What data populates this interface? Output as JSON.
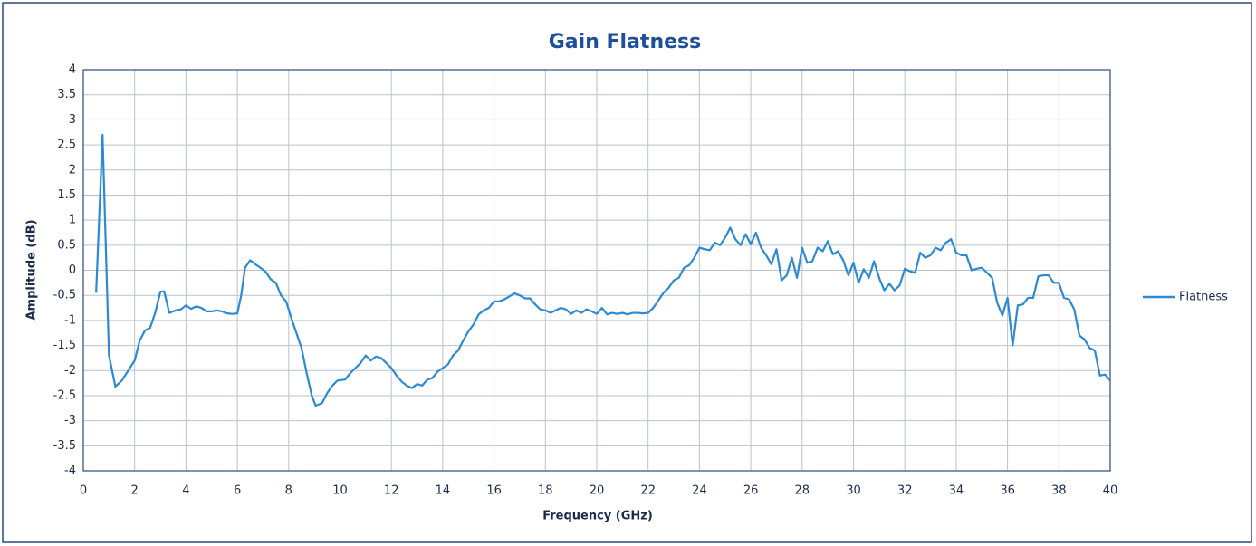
{
  "chart_data": {
    "type": "line",
    "title": "Gain Flatness",
    "xlabel": "Frequency (GHz)",
    "ylabel": "Amplitude (dB)",
    "x": [
      0.5,
      0.75,
      1.0,
      1.25,
      1.5,
      1.75,
      2.0,
      2.2,
      2.4,
      2.6,
      2.8,
      3.0,
      3.15,
      3.35,
      3.6,
      3.8,
      4.0,
      4.2,
      4.4,
      4.6,
      4.8,
      5.0,
      5.2,
      5.4,
      5.6,
      5.8,
      6.0,
      6.15,
      6.3,
      6.5,
      6.7,
      6.9,
      7.1,
      7.3,
      7.5,
      7.7,
      7.9,
      8.1,
      8.3,
      8.5,
      8.7,
      8.9,
      9.05,
      9.3,
      9.5,
      9.7,
      9.9,
      10.2,
      10.4,
      10.6,
      10.8,
      11.0,
      11.2,
      11.4,
      11.6,
      11.8,
      12.0,
      12.2,
      12.4,
      12.6,
      12.8,
      13.0,
      13.2,
      13.4,
      13.6,
      13.8,
      14.0,
      14.2,
      14.4,
      14.6,
      14.8,
      15.0,
      15.2,
      15.4,
      15.6,
      15.8,
      16.0,
      16.2,
      16.4,
      16.6,
      16.8,
      17.0,
      17.2,
      17.4,
      17.6,
      17.8,
      18.0,
      18.2,
      18.4,
      18.6,
      18.8,
      19.0,
      19.2,
      19.4,
      19.6,
      19.8,
      20.0,
      20.2,
      20.4,
      20.6,
      20.8,
      21.0,
      21.2,
      21.4,
      21.6,
      21.8,
      22.0,
      22.2,
      22.4,
      22.6,
      22.8,
      23.0,
      23.2,
      23.4,
      23.6,
      23.8,
      24.0,
      24.2,
      24.4,
      24.6,
      24.8,
      25.0,
      25.2,
      25.4,
      25.6,
      25.8,
      26.0,
      26.2,
      26.4,
      26.6,
      26.8,
      27.0,
      27.2,
      27.4,
      27.6,
      27.8,
      28.0,
      28.2,
      28.4,
      28.6,
      28.8,
      29.0,
      29.2,
      29.4,
      29.6,
      29.8,
      30.0,
      30.2,
      30.4,
      30.6,
      30.8,
      31.0,
      31.2,
      31.4,
      31.6,
      31.8,
      32.0,
      32.2,
      32.4,
      32.6,
      32.8,
      33.0,
      33.2,
      33.4,
      33.6,
      33.8,
      34.0,
      34.2,
      34.4,
      34.6,
      34.8,
      35.0,
      35.2,
      35.4,
      35.6,
      35.8,
      36.0,
      36.2,
      36.4,
      36.6,
      36.8,
      37.0,
      37.2,
      37.4,
      37.6,
      37.8,
      38.0,
      38.2,
      38.4,
      38.6,
      38.8,
      39.0,
      39.2,
      39.4,
      39.6,
      39.8,
      40.0
    ],
    "series": [
      {
        "name": "Flatness",
        "color": "#2b8ad3",
        "values": [
          -0.45,
          2.7,
          -1.7,
          -2.32,
          -2.2,
          -2.0,
          -1.8,
          -1.4,
          -1.2,
          -1.15,
          -0.85,
          -0.43,
          -0.42,
          -0.85,
          -0.8,
          -0.78,
          -0.7,
          -0.77,
          -0.72,
          -0.75,
          -0.82,
          -0.82,
          -0.8,
          -0.82,
          -0.86,
          -0.87,
          -0.86,
          -0.5,
          0.05,
          0.2,
          0.12,
          0.05,
          -0.03,
          -0.18,
          -0.25,
          -0.5,
          -0.62,
          -0.95,
          -1.25,
          -1.55,
          -2.05,
          -2.5,
          -2.7,
          -2.65,
          -2.45,
          -2.3,
          -2.2,
          -2.18,
          -2.05,
          -1.95,
          -1.85,
          -1.7,
          -1.8,
          -1.72,
          -1.75,
          -1.85,
          -1.95,
          -2.1,
          -2.22,
          -2.3,
          -2.35,
          -2.27,
          -2.3,
          -2.18,
          -2.15,
          -2.02,
          -1.95,
          -1.88,
          -1.7,
          -1.6,
          -1.4,
          -1.22,
          -1.08,
          -0.88,
          -0.8,
          -0.75,
          -0.62,
          -0.62,
          -0.58,
          -0.52,
          -0.46,
          -0.5,
          -0.56,
          -0.56,
          -0.68,
          -0.78,
          -0.8,
          -0.85,
          -0.8,
          -0.75,
          -0.78,
          -0.87,
          -0.8,
          -0.85,
          -0.78,
          -0.82,
          -0.87,
          -0.75,
          -0.88,
          -0.85,
          -0.87,
          -0.85,
          -0.88,
          -0.85,
          -0.85,
          -0.86,
          -0.85,
          -0.75,
          -0.6,
          -0.45,
          -0.35,
          -0.2,
          -0.15,
          0.05,
          0.1,
          0.25,
          0.45,
          0.42,
          0.4,
          0.55,
          0.5,
          0.65,
          0.85,
          0.62,
          0.5,
          0.72,
          0.52,
          0.75,
          0.45,
          0.3,
          0.12,
          0.42,
          -0.2,
          -0.1,
          0.25,
          -0.15,
          0.45,
          0.15,
          0.18,
          0.45,
          0.38,
          0.58,
          0.32,
          0.38,
          0.2,
          -0.1,
          0.15,
          -0.25,
          0.02,
          -0.15,
          0.18,
          -0.15,
          -0.4,
          -0.27,
          -0.4,
          -0.3,
          0.03,
          -0.02,
          -0.05,
          0.35,
          0.25,
          0.3,
          0.45,
          0.4,
          0.55,
          0.62,
          0.35,
          0.3,
          0.3,
          0.0,
          0.03,
          0.05,
          -0.05,
          -0.15,
          -0.65,
          -0.9,
          -0.55,
          -1.5,
          -0.7,
          -0.68,
          -0.55,
          -0.55,
          -0.12,
          -0.1,
          -0.1,
          -0.25,
          -0.25,
          -0.55,
          -0.58,
          -0.78,
          -1.3,
          -1.38,
          -1.55,
          -1.6,
          -2.1,
          -2.08,
          -2.2
        ]
      }
    ],
    "xlim": [
      0,
      40
    ],
    "xticks": [
      0,
      2,
      4,
      6,
      8,
      10,
      12,
      14,
      16,
      18,
      20,
      22,
      24,
      26,
      28,
      30,
      32,
      34,
      36,
      38,
      40
    ],
    "ylim": [
      -4,
      4
    ],
    "yticks": [
      4,
      3.5,
      3,
      2.5,
      2,
      1.5,
      1,
      0.5,
      0,
      -0.5,
      -1,
      -1.5,
      -2,
      -2.5,
      -3,
      -3.5,
      -4
    ],
    "grid": true,
    "legend": "right"
  }
}
